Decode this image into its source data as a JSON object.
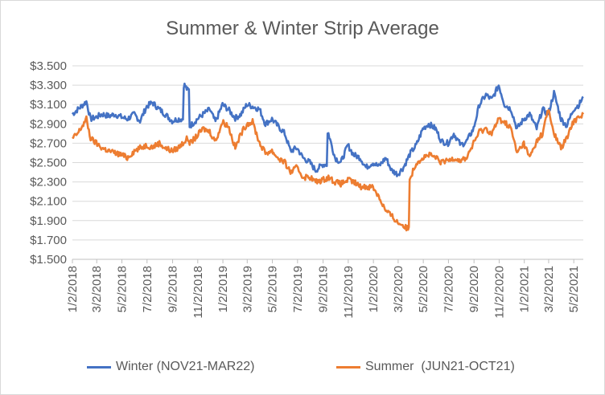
{
  "chart_data": {
    "type": "line",
    "title": "Summer & Winter Strip Average",
    "y_tick_labels": [
      "$1.500",
      "$1.700",
      "$1.900",
      "$2.100",
      "$2.300",
      "$2.500",
      "$2.700",
      "$2.900",
      "$3.100",
      "$3.300",
      "$3.500"
    ],
    "ylim": [
      1.5,
      3.5
    ],
    "x_tick_labels": [
      "1/2/2018",
      "3/2/2018",
      "5/2/2018",
      "7/2/2018",
      "9/2/2018",
      "11/2/2018",
      "1/2/2019",
      "3/2/2019",
      "5/2/2019",
      "7/2/2019",
      "9/2/2019",
      "11/2/2019",
      "1/2/2020",
      "3/2/2020",
      "5/2/2020",
      "7/2/2020",
      "9/2/2020",
      "11/2/2020",
      "1/2/2021",
      "3/2/2021",
      "5/2/2021"
    ],
    "xlim": [
      "2018-01-02",
      "2021-05-25"
    ],
    "grid": "horizontal",
    "legend_position": "bottom",
    "series": [
      {
        "name": "Winter (NOV21-MAR22)",
        "color": "#4472C4",
        "x": [
          "2018-01-02",
          "2018-01-15",
          "2018-02-05",
          "2018-02-15",
          "2018-03-01",
          "2018-03-15",
          "2018-04-01",
          "2018-04-15",
          "2018-05-01",
          "2018-05-15",
          "2018-06-01",
          "2018-06-15",
          "2018-07-01",
          "2018-07-15",
          "2018-08-01",
          "2018-08-15",
          "2018-09-01",
          "2018-09-15",
          "2018-10-01",
          "2018-10-08",
          "2018-10-15",
          "2018-11-01",
          "2018-11-15",
          "2018-12-01",
          "2018-12-15",
          "2019-01-01",
          "2019-01-15",
          "2019-02-01",
          "2019-02-15",
          "2019-03-01",
          "2019-03-15",
          "2019-04-01",
          "2019-04-15",
          "2019-05-01",
          "2019-05-15",
          "2019-06-01",
          "2019-06-15",
          "2019-07-01",
          "2019-07-15",
          "2019-08-01",
          "2019-08-15",
          "2019-09-01",
          "2019-09-15",
          "2019-10-01",
          "2019-10-15",
          "2019-11-01",
          "2019-11-15",
          "2019-12-01",
          "2019-12-15",
          "2020-01-01",
          "2020-01-15",
          "2020-02-01",
          "2020-02-15",
          "2020-03-01",
          "2020-03-15",
          "2020-04-01",
          "2020-04-15",
          "2020-05-01",
          "2020-05-15",
          "2020-06-01",
          "2020-06-15",
          "2020-07-01",
          "2020-07-15",
          "2020-08-01",
          "2020-08-15",
          "2020-09-01",
          "2020-09-15",
          "2020-10-01",
          "2020-10-15",
          "2020-11-01",
          "2020-11-15",
          "2020-12-01",
          "2020-12-15",
          "2021-01-01",
          "2021-01-15",
          "2021-02-01",
          "2021-02-15",
          "2021-03-01",
          "2021-03-15",
          "2021-04-01",
          "2021-04-15",
          "2021-05-01",
          "2021-05-15",
          "2021-05-25"
        ],
        "values": [
          3.0,
          3.05,
          3.13,
          2.95,
          2.97,
          3.0,
          2.98,
          3.0,
          2.97,
          2.95,
          3.0,
          2.93,
          3.08,
          3.12,
          3.05,
          3.0,
          2.93,
          2.95,
          3.3,
          3.25,
          2.88,
          2.95,
          3.0,
          3.05,
          2.92,
          3.1,
          3.05,
          2.96,
          3.0,
          3.1,
          3.08,
          3.05,
          2.9,
          2.95,
          2.88,
          2.8,
          2.62,
          2.65,
          2.55,
          2.5,
          2.42,
          2.48,
          2.8,
          2.55,
          2.5,
          2.68,
          2.58,
          2.55,
          2.45,
          2.5,
          2.46,
          2.55,
          2.42,
          2.38,
          2.45,
          2.6,
          2.68,
          2.85,
          2.9,
          2.85,
          2.72,
          2.7,
          2.8,
          2.68,
          2.72,
          2.85,
          3.1,
          3.2,
          3.15,
          3.3,
          3.1,
          3.05,
          2.85,
          2.95,
          3.0,
          2.85,
          3.05,
          3.0,
          3.22,
          2.95,
          2.88,
          3.05,
          3.1,
          3.18
        ]
      },
      {
        "name": "Summer  (JUN21-OCT21)",
        "color": "#ED7D31",
        "x": [
          "2018-01-02",
          "2018-01-15",
          "2018-02-05",
          "2018-02-15",
          "2018-03-01",
          "2018-03-15",
          "2018-04-01",
          "2018-04-15",
          "2018-05-01",
          "2018-05-15",
          "2018-06-01",
          "2018-06-15",
          "2018-07-01",
          "2018-07-15",
          "2018-08-01",
          "2018-08-15",
          "2018-09-01",
          "2018-09-15",
          "2018-10-01",
          "2018-10-08",
          "2018-10-15",
          "2018-11-01",
          "2018-11-15",
          "2018-12-01",
          "2018-12-15",
          "2019-01-01",
          "2019-01-15",
          "2019-02-01",
          "2019-02-15",
          "2019-03-01",
          "2019-03-15",
          "2019-04-01",
          "2019-04-15",
          "2019-05-01",
          "2019-05-15",
          "2019-06-01",
          "2019-06-15",
          "2019-07-01",
          "2019-07-15",
          "2019-08-01",
          "2019-08-15",
          "2019-09-01",
          "2019-09-15",
          "2019-10-01",
          "2019-10-15",
          "2019-11-01",
          "2019-11-15",
          "2019-12-01",
          "2019-12-15",
          "2020-01-01",
          "2020-01-15",
          "2020-02-01",
          "2020-02-15",
          "2020-03-01",
          "2020-03-15",
          "2020-03-22",
          "2020-04-01",
          "2020-04-15",
          "2020-05-01",
          "2020-05-15",
          "2020-06-01",
          "2020-06-15",
          "2020-07-01",
          "2020-07-15",
          "2020-08-01",
          "2020-08-15",
          "2020-09-01",
          "2020-09-15",
          "2020-10-01",
          "2020-10-15",
          "2020-11-01",
          "2020-11-15",
          "2020-12-01",
          "2020-12-15",
          "2021-01-01",
          "2021-01-15",
          "2021-02-01",
          "2021-02-15",
          "2021-03-01",
          "2021-03-15",
          "2021-04-01",
          "2021-04-15",
          "2021-05-01",
          "2021-05-15",
          "2021-05-25"
        ],
        "values": [
          2.75,
          2.8,
          2.95,
          2.75,
          2.7,
          2.65,
          2.62,
          2.6,
          2.58,
          2.55,
          2.62,
          2.65,
          2.68,
          2.66,
          2.7,
          2.65,
          2.62,
          2.65,
          2.72,
          2.75,
          2.7,
          2.78,
          2.85,
          2.82,
          2.72,
          2.92,
          2.88,
          2.65,
          2.8,
          2.9,
          2.92,
          2.7,
          2.6,
          2.62,
          2.55,
          2.5,
          2.4,
          2.45,
          2.35,
          2.35,
          2.3,
          2.32,
          2.35,
          2.3,
          2.28,
          2.32,
          2.3,
          2.25,
          2.25,
          2.25,
          2.15,
          2.0,
          1.95,
          1.88,
          1.85,
          1.82,
          2.35,
          2.5,
          2.55,
          2.58,
          2.55,
          2.5,
          2.52,
          2.55,
          2.52,
          2.55,
          2.7,
          2.82,
          2.85,
          2.8,
          2.95,
          2.92,
          2.85,
          2.6,
          2.7,
          2.55,
          2.72,
          2.8,
          3.05,
          2.8,
          2.65,
          2.75,
          2.92,
          2.98,
          3.0
        ]
      }
    ]
  }
}
